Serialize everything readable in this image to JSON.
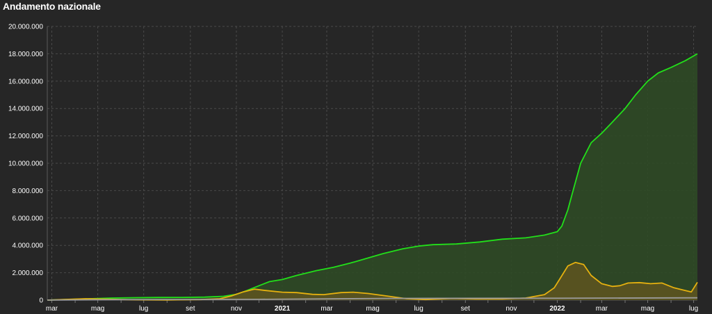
{
  "title": "Andamento nazionale",
  "chart_data": {
    "type": "area",
    "title": "Andamento nazionale",
    "xlabel": "",
    "ylabel": "",
    "ylim": [
      0,
      20000000
    ],
    "grid": true,
    "y_ticks": [
      "0",
      "2.000.000",
      "4.000.000",
      "6.000.000",
      "8.000.000",
      "10.000.000",
      "12.000.000",
      "14.000.000",
      "16.000.000",
      "18.000.000",
      "20.000.000"
    ],
    "x_ticks": [
      {
        "label": "mar",
        "m": 2,
        "year": false
      },
      {
        "label": "mag",
        "m": 4,
        "year": false
      },
      {
        "label": "lug",
        "m": 6,
        "year": false
      },
      {
        "label": "set",
        "m": 8,
        "year": false
      },
      {
        "label": "nov",
        "m": 10,
        "year": false
      },
      {
        "label": "2021",
        "m": 12,
        "year": true
      },
      {
        "label": "mar",
        "m": 14,
        "year": false
      },
      {
        "label": "mag",
        "m": 16,
        "year": false
      },
      {
        "label": "lug",
        "m": 18,
        "year": false
      },
      {
        "label": "set",
        "m": 20,
        "year": false
      },
      {
        "label": "nov",
        "m": 22,
        "year": false
      },
      {
        "label": "2022",
        "m": 24,
        "year": true
      },
      {
        "label": "mar",
        "m": 26,
        "year": false
      },
      {
        "label": "mag",
        "m": 28,
        "year": false
      },
      {
        "label": "lug",
        "m": 30,
        "year": false
      }
    ],
    "x_range": [
      "2020-02-24",
      "2022-07-06"
    ],
    "series": [
      {
        "color": "#22e01a",
        "fill": "#2f4a26",
        "points": [
          [
            "2020-02-24",
            0
          ],
          [
            "2020-03-20",
            40000
          ],
          [
            "2020-04-20",
            100000
          ],
          [
            "2020-05-20",
            150000
          ],
          [
            "2020-06-20",
            180000
          ],
          [
            "2020-07-20",
            195000
          ],
          [
            "2020-08-20",
            200000
          ],
          [
            "2020-09-20",
            220000
          ],
          [
            "2020-10-15",
            280000
          ],
          [
            "2020-11-01",
            420000
          ],
          [
            "2020-11-15",
            700000
          ],
          [
            "2020-12-01",
            1050000
          ],
          [
            "2020-12-15",
            1350000
          ],
          [
            "2021-01-01",
            1500000
          ],
          [
            "2021-01-20",
            1800000
          ],
          [
            "2021-02-15",
            2150000
          ],
          [
            "2021-03-10",
            2400000
          ],
          [
            "2021-04-01",
            2700000
          ],
          [
            "2021-04-20",
            3000000
          ],
          [
            "2021-05-15",
            3400000
          ],
          [
            "2021-06-10",
            3750000
          ],
          [
            "2021-07-01",
            3950000
          ],
          [
            "2021-07-20",
            4050000
          ],
          [
            "2021-08-20",
            4100000
          ],
          [
            "2021-09-20",
            4250000
          ],
          [
            "2021-10-20",
            4450000
          ],
          [
            "2021-11-20",
            4550000
          ],
          [
            "2021-12-15",
            4750000
          ],
          [
            "2022-01-01",
            5000000
          ],
          [
            "2022-01-07",
            5400000
          ],
          [
            "2022-01-15",
            6600000
          ],
          [
            "2022-01-22",
            8000000
          ],
          [
            "2022-02-01",
            10000000
          ],
          [
            "2022-02-15",
            11500000
          ],
          [
            "2022-03-01",
            12200000
          ],
          [
            "2022-03-15",
            13000000
          ],
          [
            "2022-04-01",
            14000000
          ],
          [
            "2022-04-15",
            15000000
          ],
          [
            "2022-05-01",
            16000000
          ],
          [
            "2022-05-15",
            16600000
          ],
          [
            "2022-06-01",
            17000000
          ],
          [
            "2022-06-20",
            17500000
          ],
          [
            "2022-07-06",
            18000000
          ]
        ]
      },
      {
        "color": "#e6b10f",
        "fill": "#5c5320",
        "points": [
          [
            "2020-02-24",
            0
          ],
          [
            "2020-03-20",
            50000
          ],
          [
            "2020-04-15",
            100000
          ],
          [
            "2020-05-20",
            60000
          ],
          [
            "2020-06-20",
            20000
          ],
          [
            "2020-08-01",
            12000
          ],
          [
            "2020-09-15",
            40000
          ],
          [
            "2020-10-10",
            100000
          ],
          [
            "2020-10-25",
            300000
          ],
          [
            "2020-11-10",
            600000
          ],
          [
            "2020-11-25",
            800000
          ],
          [
            "2020-12-10",
            700000
          ],
          [
            "2021-01-01",
            580000
          ],
          [
            "2021-01-20",
            550000
          ],
          [
            "2021-02-10",
            420000
          ],
          [
            "2021-02-25",
            400000
          ],
          [
            "2021-03-20",
            550000
          ],
          [
            "2021-04-05",
            580000
          ],
          [
            "2021-04-25",
            480000
          ],
          [
            "2021-05-20",
            300000
          ],
          [
            "2021-06-15",
            100000
          ],
          [
            "2021-07-10",
            40000
          ],
          [
            "2021-08-15",
            120000
          ],
          [
            "2021-09-15",
            80000
          ],
          [
            "2021-10-20",
            80000
          ],
          [
            "2021-11-20",
            150000
          ],
          [
            "2021-12-15",
            400000
          ],
          [
            "2021-12-28",
            900000
          ],
          [
            "2022-01-05",
            1600000
          ],
          [
            "2022-01-15",
            2500000
          ],
          [
            "2022-01-25",
            2750000
          ],
          [
            "2022-02-05",
            2600000
          ],
          [
            "2022-02-15",
            1800000
          ],
          [
            "2022-03-01",
            1200000
          ],
          [
            "2022-03-15",
            1000000
          ],
          [
            "2022-03-25",
            1050000
          ],
          [
            "2022-04-05",
            1250000
          ],
          [
            "2022-04-20",
            1280000
          ],
          [
            "2022-05-05",
            1200000
          ],
          [
            "2022-05-20",
            1250000
          ],
          [
            "2022-06-05",
            900000
          ],
          [
            "2022-06-20",
            700000
          ],
          [
            "2022-06-28",
            600000
          ],
          [
            "2022-07-06",
            1300000
          ]
        ]
      },
      {
        "color": "#9a9a9a",
        "fill": "none",
        "points": [
          [
            "2020-02-24",
            0
          ],
          [
            "2020-06-01",
            34000
          ],
          [
            "2020-12-01",
            58000
          ],
          [
            "2021-06-01",
            127000
          ],
          [
            "2022-01-01",
            138000
          ],
          [
            "2022-07-06",
            169000
          ]
        ]
      }
    ]
  }
}
